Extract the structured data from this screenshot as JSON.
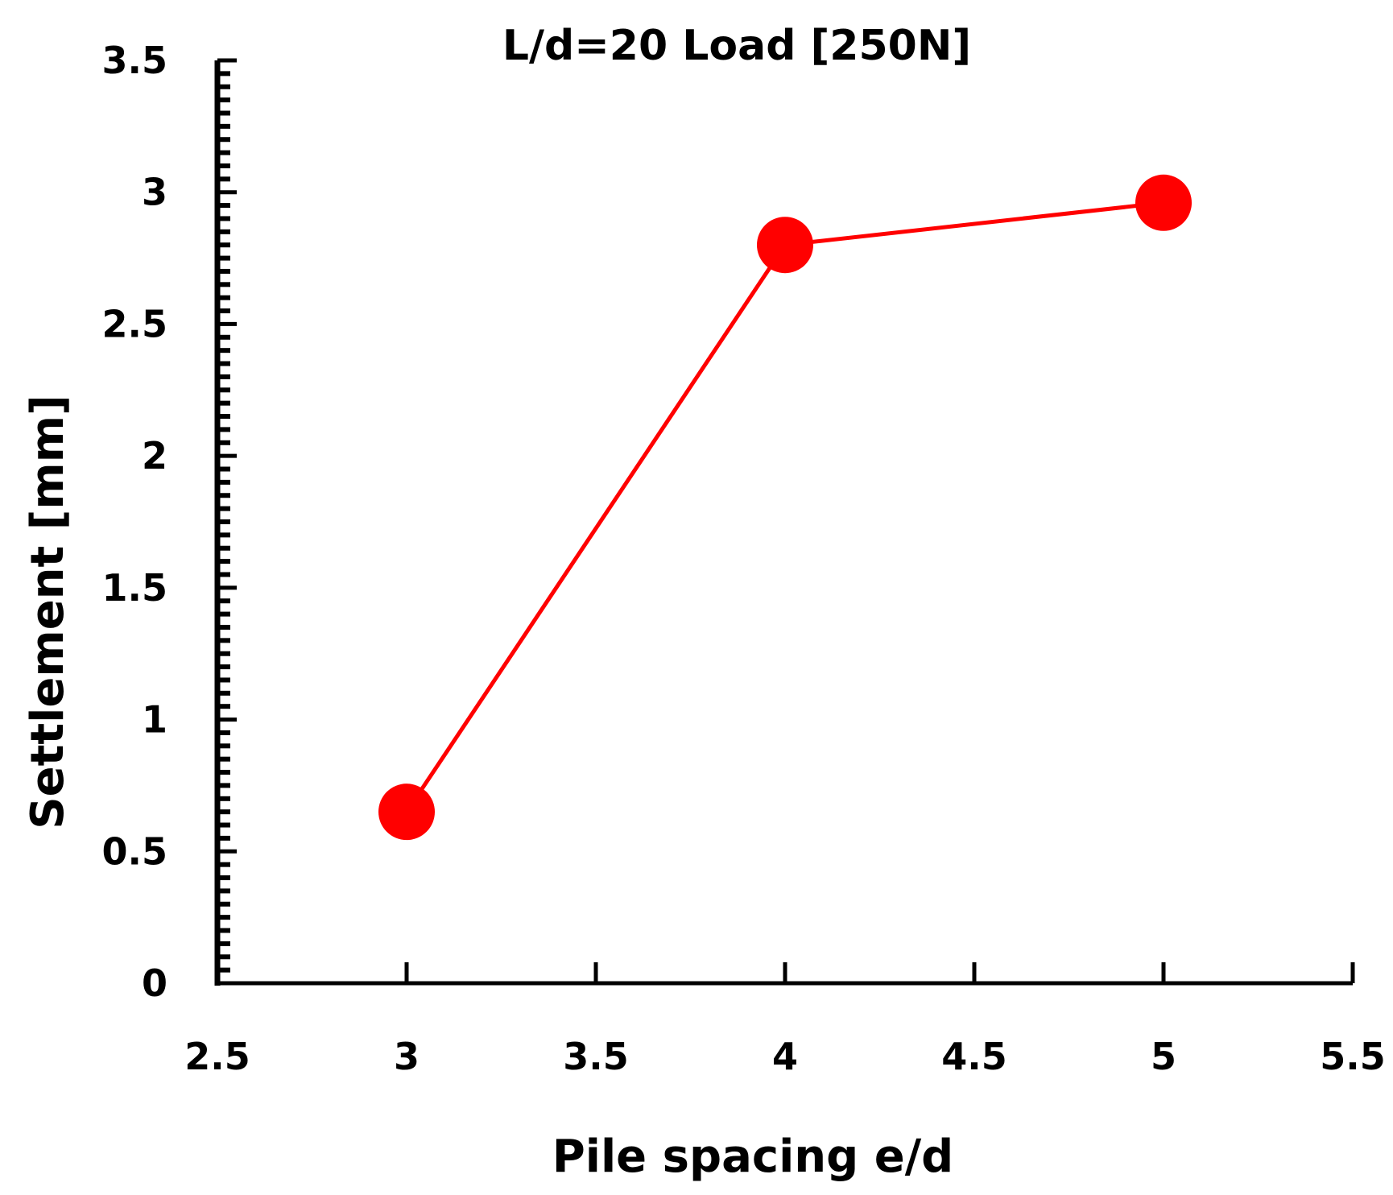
{
  "chart_data": {
    "type": "line",
    "title": "L/d=20  Load [250N]",
    "xlabel": "Pile spacing e/d",
    "ylabel": "Settlement [mm]",
    "xlim": [
      2.5,
      5.5
    ],
    "ylim": [
      0,
      3.5
    ],
    "x_ticks": [
      "2.5",
      "3",
      "3.5",
      "4",
      "4.5",
      "5",
      "5.5"
    ],
    "y_ticks": [
      "0",
      "0.5",
      "1",
      "1.5",
      "2",
      "2.5",
      "3",
      "3.5"
    ],
    "grid": false,
    "legend": "none",
    "series": [
      {
        "x": [
          3,
          4,
          5
        ],
        "y": [
          0.65,
          2.8,
          2.96
        ],
        "color": "#ff0000",
        "marker": "circle"
      }
    ]
  }
}
